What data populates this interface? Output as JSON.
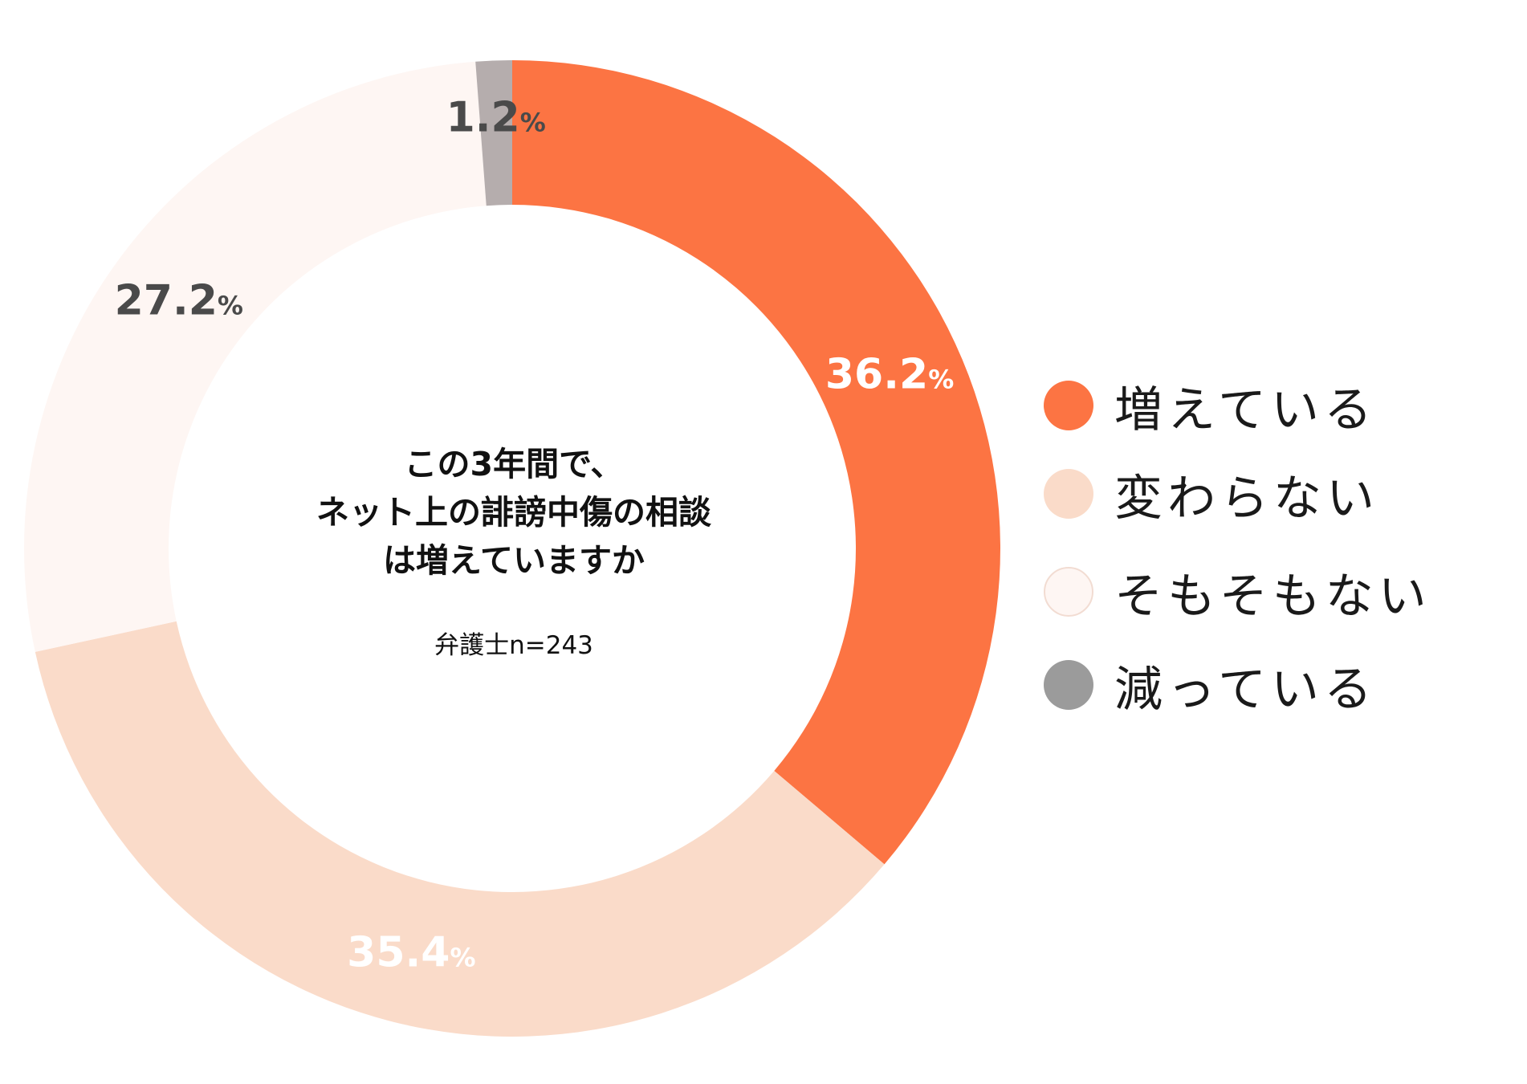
{
  "chart_data": {
    "type": "pie",
    "donut": true,
    "categories": [
      "増えている",
      "変わらない",
      "そもそもない",
      "減っている"
    ],
    "values": [
      36.2,
      35.4,
      27.2,
      1.2
    ],
    "unit": "%",
    "labels": [
      {
        "value": "36.2",
        "unit": "%"
      },
      {
        "value": "35.4",
        "unit": "%"
      },
      {
        "value": "27.2",
        "unit": "%"
      },
      {
        "value": "1.2",
        "unit": "%"
      }
    ],
    "colors": [
      "#FC7443",
      "#FADBC9",
      "#FEF6F3",
      "#B5ADAD"
    ],
    "label_colors": [
      "#FFFFFF",
      "#FFFFFF",
      "#4A4A4A",
      "#4A4A4A"
    ],
    "legend_marker_colors": [
      "#FC7443",
      "#FADBC9",
      "#FEF6F3",
      "#9B9B9B"
    ],
    "legend_placement": "right",
    "center_title": [
      "この3年間で、",
      "ネット上の誹謗中傷の相談",
      "は増えていますか"
    ],
    "sample": "弁護士n=243"
  }
}
